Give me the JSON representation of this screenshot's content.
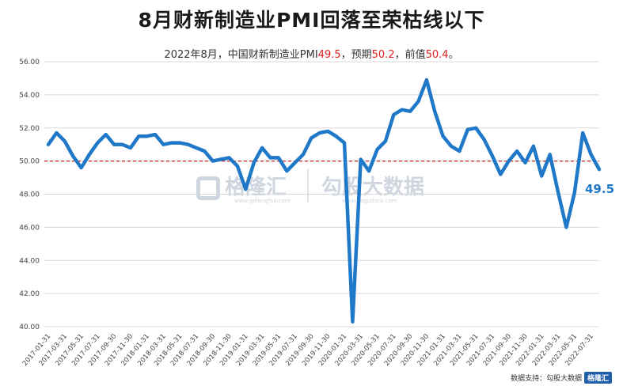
{
  "title_line1": "8月财新制造业PMI回落至荣枯线以下",
  "subtitle": {
    "prefix": "2022年8月，中国财新制造业PMI",
    "actual": "49.5",
    "mid1": "，预期",
    "expected": "50.2",
    "mid2": "，前值",
    "previous": "50.4",
    "suffix": "。"
  },
  "source": "数据支持：勾股大数据",
  "watermark": {
    "left_logo": "格隆汇",
    "left_url": "www.gelonghui.com",
    "right_logo": "勾股大数据",
    "right_url": "www.gogudata.com",
    "corner": "格隆汇"
  },
  "colors": {
    "line": "#1f78c8",
    "ref_line": "#cc2222",
    "end_label": "#1f78c8"
  },
  "chart_data": {
    "type": "line",
    "ylim": [
      40,
      56
    ],
    "yticks": [
      "40.00",
      "42.00",
      "44.00",
      "46.00",
      "48.00",
      "50.00",
      "52.00",
      "54.00",
      "56.00"
    ],
    "reference_line": 50.0,
    "end_label": "49.5",
    "x_tick_labels": [
      "2017-01-31",
      "2017-03-31",
      "2017-05-31",
      "2017-07-31",
      "2017-09-30",
      "2017-11-30",
      "2018-01-31",
      "2018-03-31",
      "2018-05-31",
      "2018-07-31",
      "2018-09-30",
      "2018-11-30",
      "2019-01-31",
      "2019-03-31",
      "2019-05-31",
      "2019-07-31",
      "2019-09-30",
      "2019-11-30",
      "2020-01-31",
      "2020-03-31",
      "2020-05-31",
      "2020-07-31",
      "2020-09-30",
      "2020-11-30",
      "2021-01-31",
      "2021-03-31",
      "2021-05-31",
      "2021-07-31",
      "2021-09-30",
      "2021-11-30",
      "2022-01-31",
      "2022-03-31",
      "2022-05-31",
      "2022-07-31"
    ],
    "series": [
      {
        "x": [
          "2017-01",
          "2017-02",
          "2017-03",
          "2017-04",
          "2017-05",
          "2017-06",
          "2017-07",
          "2017-08",
          "2017-09",
          "2017-10",
          "2017-11",
          "2017-12",
          "2018-01",
          "2018-02",
          "2018-03",
          "2018-04",
          "2018-05",
          "2018-06",
          "2018-07",
          "2018-08",
          "2018-09",
          "2018-10",
          "2018-11",
          "2018-12",
          "2019-01",
          "2019-02",
          "2019-03",
          "2019-04",
          "2019-05",
          "2019-06",
          "2019-07",
          "2019-08",
          "2019-09",
          "2019-10",
          "2019-11",
          "2019-12",
          "2020-01",
          "2020-02",
          "2020-03",
          "2020-04",
          "2020-05",
          "2020-06",
          "2020-07",
          "2020-08",
          "2020-09",
          "2020-10",
          "2020-11",
          "2020-12",
          "2021-01",
          "2021-02",
          "2021-03",
          "2021-04",
          "2021-05",
          "2021-06",
          "2021-07",
          "2021-08",
          "2021-09",
          "2021-10",
          "2021-11",
          "2021-12",
          "2022-01",
          "2022-02",
          "2022-03",
          "2022-04",
          "2022-05",
          "2022-06",
          "2022-07",
          "2022-08"
        ],
        "values": [
          51.0,
          51.7,
          51.2,
          50.3,
          49.6,
          50.4,
          51.1,
          51.6,
          51.0,
          51.0,
          50.8,
          51.5,
          51.5,
          51.6,
          51.0,
          51.1,
          51.1,
          51.0,
          50.8,
          50.6,
          50.0,
          50.1,
          50.2,
          49.7,
          48.3,
          49.9,
          50.8,
          50.2,
          50.2,
          49.4,
          49.9,
          50.4,
          51.4,
          51.7,
          51.8,
          51.5,
          51.1,
          40.3,
          50.1,
          49.4,
          50.7,
          51.2,
          52.8,
          53.1,
          53.0,
          53.6,
          54.9,
          53.0,
          51.5,
          50.9,
          50.6,
          51.9,
          52.0,
          51.3,
          50.3,
          49.2,
          50.0,
          50.6,
          49.9,
          50.9,
          49.1,
          50.4,
          48.1,
          46.0,
          48.1,
          51.7,
          50.4,
          49.5
        ]
      }
    ]
  }
}
